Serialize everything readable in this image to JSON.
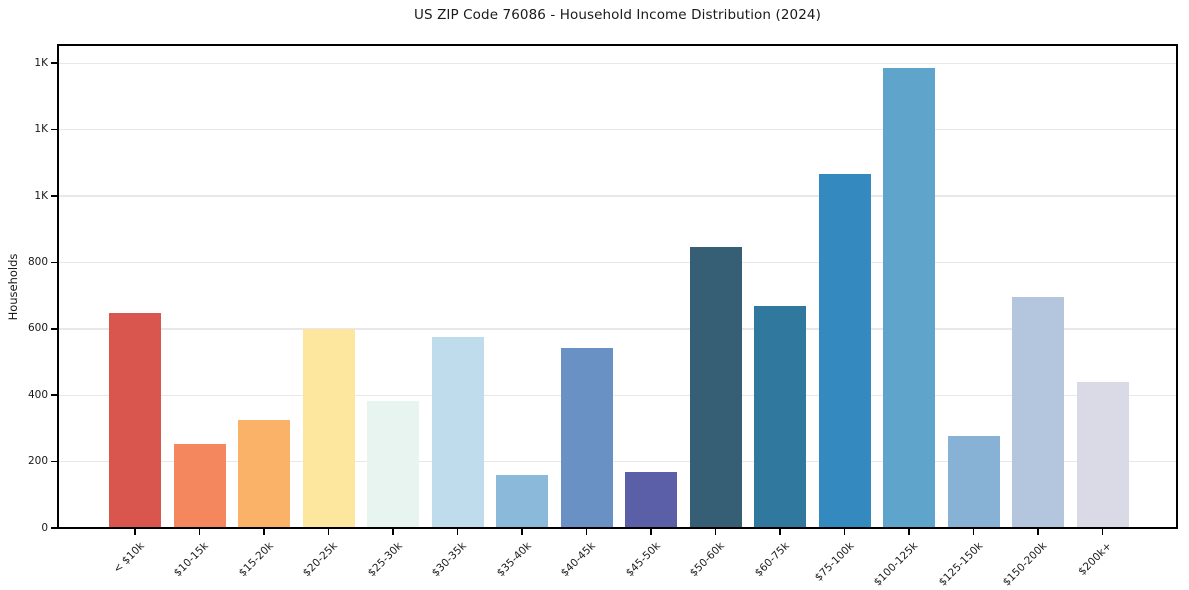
{
  "chart_data": {
    "type": "bar",
    "title": "US ZIP Code 76086 - Household Income Distribution (2024)",
    "xlabel": "",
    "ylabel": "Households",
    "categories": [
      "< $10k",
      "$10-15k",
      "$15-20k",
      "$20-25k",
      "$25-30k",
      "$30-35k",
      "$35-40k",
      "$40-45k",
      "$45-50k",
      "$50-60k",
      "$60-75k",
      "$75-100k",
      "$100-125k",
      "$125-150k",
      "$150-200k",
      "$200k+"
    ],
    "values": [
      647,
      252,
      324,
      601,
      384,
      574,
      161,
      541,
      170,
      846,
      668,
      1066,
      1385,
      276,
      695,
      439
    ],
    "bar_colors": [
      "#d9564f",
      "#f5875f",
      "#fab269",
      "#fde79e",
      "#e8f4f0",
      "#bedceb",
      "#8bb9da",
      "#6991c3",
      "#5a5fa8",
      "#365e75",
      "#30789e",
      "#348abe",
      "#5fa5cb",
      "#88b2d5",
      "#b3c6de",
      "#d9dae6"
    ],
    "ylim": [
      0,
      1455
    ],
    "ytick_values": [
      0,
      200,
      400,
      600,
      800,
      1000,
      1200,
      1400
    ],
    "ytick_labels": [
      "0",
      "200",
      "400",
      "600",
      "800",
      "1K",
      "1K",
      "1K"
    ],
    "grid": "horizontal",
    "legend_position": "none",
    "colors": {
      "gridline": "#e8e8e8",
      "spine": "#000000",
      "text": "#1a1a1a",
      "background": "#ffffff"
    }
  }
}
